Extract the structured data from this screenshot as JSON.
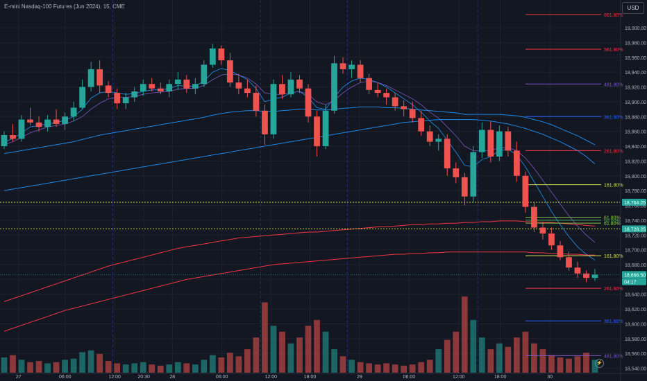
{
  "header": {
    "title": "E-mini Nasdaq-100 Futures (Jun 2024), 15, CME",
    "currency": "USD"
  },
  "colors": {
    "background": "#131722",
    "grid": "#1e222d",
    "up": "#26a69a",
    "down": "#ef5350",
    "ema_short": "#2196f3",
    "ema_mid": "#7e57c2",
    "ma_long_blue": "#1e88e5",
    "ma_long_red": "#f23645"
  },
  "chart_data": {
    "type": "candlestick",
    "title": "E-mini Nasdaq-100 Futures (Jun 2024), 15, CME",
    "yaxis": {
      "range": [
        18534,
        19030
      ],
      "ticks": [
        "19,000.00",
        "18,980.00",
        "18,960.00",
        "18,940.00",
        "18,920.00",
        "18,900.00",
        "18,880.00",
        "18,860.00",
        "18,840.00",
        "18,820.00",
        "18,800.00",
        "18,780.00",
        "18,760.00",
        "18,740.00",
        "18,720.00",
        "18,700.00",
        "18,680.00",
        "18,660.00",
        "18,640.00",
        "18,620.00",
        "18,600.00",
        "18,580.00",
        "18,560.00",
        "18,540.00"
      ]
    },
    "xaxis": {
      "ticks": [
        "27",
        "06:00",
        "12:00",
        "20:30",
        "28",
        "06:00",
        "12:00",
        "18:00",
        "29",
        "06:00",
        "12:00",
        "18:00",
        "30"
      ]
    },
    "price_labels": [
      {
        "text": "18,764.25",
        "value": 18764.25,
        "color": "#26a69a"
      },
      {
        "text": "18,728.25",
        "value": 18728.25,
        "color": "#26a69a"
      },
      {
        "text": "18,666.50",
        "value": 18666.5,
        "color": "#26a69a"
      },
      {
        "text": "04:17",
        "value": 18657,
        "color": "#26a69a"
      }
    ],
    "fibonacci_levels": [
      {
        "label": "661.80%",
        "value": 19018,
        "color": "#f23645"
      },
      {
        "label": "561.80%",
        "value": 18971,
        "color": "#f23645"
      },
      {
        "label": "461.80%",
        "value": 18924,
        "color": "#7e57c2"
      },
      {
        "label": "361.80%",
        "value": 18880,
        "color": "#2962ff"
      },
      {
        "label": "261.80%",
        "value": 18834,
        "color": "#f23645"
      },
      {
        "label": "161.80%",
        "value": 18788,
        "color": "#d4e157"
      },
      {
        "label": "61.80%",
        "value": 18744,
        "color": "#8bc34a"
      },
      {
        "label": "50.00%",
        "value": 18740,
        "color": "#4caf50"
      },
      {
        "label": "61.80%",
        "value": 18736,
        "color": "#8bc34a"
      },
      {
        "label": "161.80%",
        "value": 18692,
        "color": "#d4e157"
      },
      {
        "label": "261.80%",
        "value": 18648,
        "color": "#f23645"
      },
      {
        "label": "361.80%",
        "value": 18604,
        "color": "#2962ff"
      },
      {
        "label": "461.80%",
        "value": 18557,
        "color": "#7e57c2"
      }
    ],
    "dotted_levels": [
      {
        "value": 18764.25,
        "color": "#d4e157"
      },
      {
        "value": 18728.25,
        "color": "#d4e157"
      }
    ],
    "session_breaks": [
      12,
      29,
      39,
      54
    ],
    "candles": [
      {
        "o": 18840,
        "h": 18860,
        "l": 18836,
        "c": 18855
      },
      {
        "o": 18855,
        "h": 18870,
        "l": 18846,
        "c": 18850
      },
      {
        "o": 18850,
        "h": 18882,
        "l": 18846,
        "c": 18876
      },
      {
        "o": 18876,
        "h": 18892,
        "l": 18868,
        "c": 18872
      },
      {
        "o": 18872,
        "h": 18880,
        "l": 18860,
        "c": 18866
      },
      {
        "o": 18866,
        "h": 18882,
        "l": 18860,
        "c": 18876
      },
      {
        "o": 18876,
        "h": 18890,
        "l": 18866,
        "c": 18870
      },
      {
        "o": 18870,
        "h": 18886,
        "l": 18862,
        "c": 18880
      },
      {
        "o": 18880,
        "h": 18900,
        "l": 18874,
        "c": 18892
      },
      {
        "o": 18892,
        "h": 18930,
        "l": 18890,
        "c": 18920
      },
      {
        "o": 18920,
        "h": 18954,
        "l": 18914,
        "c": 18944
      },
      {
        "o": 18944,
        "h": 18956,
        "l": 18912,
        "c": 18922
      },
      {
        "o": 18922,
        "h": 18928,
        "l": 18906,
        "c": 18912
      },
      {
        "o": 18912,
        "h": 18918,
        "l": 18890,
        "c": 18898
      },
      {
        "o": 18898,
        "h": 18912,
        "l": 18890,
        "c": 18906
      },
      {
        "o": 18906,
        "h": 18920,
        "l": 18900,
        "c": 18914
      },
      {
        "o": 18914,
        "h": 18930,
        "l": 18908,
        "c": 18924
      },
      {
        "o": 18924,
        "h": 18932,
        "l": 18914,
        "c": 18918
      },
      {
        "o": 18918,
        "h": 18926,
        "l": 18910,
        "c": 18914
      },
      {
        "o": 18914,
        "h": 18930,
        "l": 18906,
        "c": 18924
      },
      {
        "o": 18924,
        "h": 18940,
        "l": 18916,
        "c": 18930
      },
      {
        "o": 18930,
        "h": 18936,
        "l": 18912,
        "c": 18918
      },
      {
        "o": 18918,
        "h": 18932,
        "l": 18910,
        "c": 18924
      },
      {
        "o": 18924,
        "h": 18956,
        "l": 18920,
        "c": 18950
      },
      {
        "o": 18950,
        "h": 18978,
        "l": 18946,
        "c": 18972
      },
      {
        "o": 18972,
        "h": 18976,
        "l": 18950,
        "c": 18956
      },
      {
        "o": 18956,
        "h": 18966,
        "l": 18920,
        "c": 18926
      },
      {
        "o": 18926,
        "h": 18938,
        "l": 18910,
        "c": 18918
      },
      {
        "o": 18918,
        "h": 18930,
        "l": 18906,
        "c": 18912
      },
      {
        "o": 18912,
        "h": 18922,
        "l": 18880,
        "c": 18888
      },
      {
        "o": 18888,
        "h": 18896,
        "l": 18842,
        "c": 18856
      },
      {
        "o": 18856,
        "h": 18930,
        "l": 18850,
        "c": 18924
      },
      {
        "o": 18924,
        "h": 18936,
        "l": 18904,
        "c": 18910
      },
      {
        "o": 18910,
        "h": 18940,
        "l": 18906,
        "c": 18930
      },
      {
        "o": 18930,
        "h": 18936,
        "l": 18912,
        "c": 18918
      },
      {
        "o": 18918,
        "h": 18924,
        "l": 18872,
        "c": 18880
      },
      {
        "o": 18880,
        "h": 18888,
        "l": 18826,
        "c": 18840
      },
      {
        "o": 18840,
        "h": 18896,
        "l": 18836,
        "c": 18888
      },
      {
        "o": 18888,
        "h": 18962,
        "l": 18884,
        "c": 18952
      },
      {
        "o": 18952,
        "h": 18960,
        "l": 18938,
        "c": 18944
      },
      {
        "o": 18944,
        "h": 18956,
        "l": 18932,
        "c": 18950
      },
      {
        "o": 18950,
        "h": 18956,
        "l": 18926,
        "c": 18932
      },
      {
        "o": 18932,
        "h": 18938,
        "l": 18910,
        "c": 18916
      },
      {
        "o": 18916,
        "h": 18926,
        "l": 18906,
        "c": 18912
      },
      {
        "o": 18912,
        "h": 18918,
        "l": 18896,
        "c": 18906
      },
      {
        "o": 18906,
        "h": 18912,
        "l": 18888,
        "c": 18894
      },
      {
        "o": 18894,
        "h": 18902,
        "l": 18880,
        "c": 18890
      },
      {
        "o": 18890,
        "h": 18900,
        "l": 18872,
        "c": 18878
      },
      {
        "o": 18878,
        "h": 18888,
        "l": 18854,
        "c": 18860
      },
      {
        "o": 18860,
        "h": 18868,
        "l": 18840,
        "c": 18846
      },
      {
        "o": 18846,
        "h": 18856,
        "l": 18834,
        "c": 18850
      },
      {
        "o": 18850,
        "h": 18856,
        "l": 18800,
        "c": 18810
      },
      {
        "o": 18810,
        "h": 18818,
        "l": 18790,
        "c": 18798
      },
      {
        "o": 18798,
        "h": 18804,
        "l": 18760,
        "c": 18772
      },
      {
        "o": 18772,
        "h": 18840,
        "l": 18764,
        "c": 18832
      },
      {
        "o": 18832,
        "h": 18872,
        "l": 18824,
        "c": 18862
      },
      {
        "o": 18862,
        "h": 18874,
        "l": 18818,
        "c": 18826
      },
      {
        "o": 18826,
        "h": 18868,
        "l": 18820,
        "c": 18860
      },
      {
        "o": 18860,
        "h": 18866,
        "l": 18826,
        "c": 18834
      },
      {
        "o": 18834,
        "h": 18846,
        "l": 18792,
        "c": 18800
      },
      {
        "o": 18800,
        "h": 18806,
        "l": 18750,
        "c": 18758
      },
      {
        "o": 18758,
        "h": 18764,
        "l": 18724,
        "c": 18730
      },
      {
        "o": 18730,
        "h": 18738,
        "l": 18714,
        "c": 18722
      },
      {
        "o": 18722,
        "h": 18730,
        "l": 18700,
        "c": 18706
      },
      {
        "o": 18706,
        "h": 18712,
        "l": 18686,
        "c": 18690
      },
      {
        "o": 18690,
        "h": 18698,
        "l": 18672,
        "c": 18676
      },
      {
        "o": 18676,
        "h": 18684,
        "l": 18662,
        "c": 18668
      },
      {
        "o": 18668,
        "h": 18672,
        "l": 18656,
        "c": 18662
      },
      {
        "o": 18662,
        "h": 18674,
        "l": 18658,
        "c": 18666.5
      }
    ],
    "volume": [
      26,
      30,
      22,
      18,
      20,
      16,
      18,
      22,
      24,
      35,
      38,
      32,
      20,
      16,
      14,
      16,
      18,
      14,
      12,
      14,
      18,
      16,
      14,
      22,
      30,
      26,
      34,
      28,
      40,
      60,
      120,
      80,
      70,
      50,
      60,
      80,
      90,
      70,
      40,
      28,
      22,
      18,
      16,
      14,
      16,
      14,
      12,
      14,
      18,
      22,
      40,
      56,
      70,
      130,
      90,
      60,
      40,
      50,
      44,
      60,
      70,
      50,
      40,
      30,
      26,
      24,
      28,
      34,
      22
    ],
    "ma_series": [
      {
        "color": "#2196f3",
        "width": 0.8,
        "values": [
          18846,
          18850,
          18858,
          18866,
          18868,
          18870,
          18872,
          18875,
          18880,
          18890,
          18905,
          18912,
          18914,
          18912,
          18910,
          18911,
          18914,
          18916,
          18916,
          18918,
          18922,
          18921,
          18921,
          18928,
          18940,
          18945,
          18942,
          18936,
          18930,
          18918,
          18900,
          18904,
          18906,
          18912,
          18914,
          18906,
          18892,
          18890,
          18906,
          18920,
          18928,
          18932,
          18930,
          18926,
          18920,
          18912,
          18904,
          18896,
          18886,
          18874,
          18864,
          18848,
          18832,
          18814,
          18812,
          18822,
          18826,
          18834,
          18836,
          18828,
          18812,
          18792,
          18772,
          18752,
          18734,
          18718,
          18704,
          18694,
          18686
        ]
      },
      {
        "color": "#7e57c2",
        "width": 0.8,
        "values": [
          18842,
          18846,
          18852,
          18858,
          18862,
          18866,
          18868,
          18870,
          18874,
          18880,
          18890,
          18898,
          18904,
          18906,
          18906,
          18907,
          18910,
          18912,
          18913,
          18914,
          18917,
          18918,
          18918,
          18922,
          18930,
          18936,
          18938,
          18936,
          18932,
          18924,
          18912,
          18910,
          18910,
          18912,
          18914,
          18910,
          18900,
          18896,
          18902,
          18912,
          18920,
          18926,
          18928,
          18926,
          18922,
          18916,
          18910,
          18904,
          18896,
          18886,
          18878,
          18866,
          18854,
          18840,
          18834,
          18834,
          18834,
          18838,
          18838,
          18834,
          18824,
          18810,
          18794,
          18778,
          18762,
          18746,
          18732,
          18720,
          18710
        ]
      },
      {
        "color": "#1e88e5",
        "width": 1.0,
        "values": [
          18830,
          18832,
          18834,
          18836,
          18838,
          18840,
          18842,
          18844,
          18846,
          18849,
          18852,
          18855,
          18857,
          18859,
          18861,
          18863,
          18865,
          18867,
          18869,
          18871,
          18873,
          18875,
          18877,
          18879,
          18882,
          18884,
          18886,
          18887,
          18888,
          18888,
          18887,
          18887,
          18888,
          18889,
          18890,
          18890,
          18889,
          18889,
          18890,
          18891,
          18892,
          18893,
          18893,
          18893,
          18892,
          18892,
          18891,
          18890,
          18889,
          18888,
          18887,
          18886,
          18885,
          18883,
          18883,
          18883,
          18883,
          18883,
          18882,
          18881,
          18879,
          18876,
          18873,
          18869,
          18864,
          18859,
          18854,
          18848,
          18842
        ]
      },
      {
        "color": "#1e88e5",
        "width": 1.0,
        "values": [
          18780,
          18782,
          18784,
          18786,
          18788,
          18790,
          18792,
          18794,
          18796,
          18798,
          18800,
          18802,
          18804,
          18806,
          18808,
          18810,
          18812,
          18814,
          18816,
          18818,
          18820,
          18822,
          18824,
          18826,
          18828,
          18830,
          18832,
          18834,
          18836,
          18838,
          18840,
          18842,
          18844,
          18846,
          18848,
          18850,
          18852,
          18854,
          18856,
          18858,
          18860,
          18862,
          18864,
          18866,
          18868,
          18870,
          18872,
          18873,
          18874,
          18875,
          18876,
          18876,
          18876,
          18876,
          18876,
          18875,
          18874,
          18872,
          18870,
          18867,
          18864,
          18860,
          18856,
          18851,
          18846,
          18840,
          18834,
          18826,
          18816
        ]
      },
      {
        "color": "#f23645",
        "width": 1.0,
        "values": [
          18630,
          18634,
          18638,
          18642,
          18646,
          18650,
          18654,
          18658,
          18662,
          18666,
          18670,
          18674,
          18678,
          18681,
          18684,
          18687,
          18690,
          18693,
          18696,
          18699,
          18702,
          18704,
          18706,
          18708,
          18710,
          18712,
          18714,
          18716,
          18717,
          18718,
          18719,
          18720,
          18721,
          18722,
          18723,
          18724,
          18724,
          18725,
          18726,
          18727,
          18728,
          18729,
          18730,
          18731,
          18731,
          18732,
          18733,
          18734,
          18734,
          18735,
          18735,
          18736,
          18736,
          18737,
          18737,
          18738,
          18738,
          18739,
          18739,
          18739,
          18738,
          18738,
          18737,
          18737,
          18736,
          18735,
          18734,
          18733,
          18732
        ]
      },
      {
        "color": "#f23645",
        "width": 1.0,
        "values": [
          18590,
          18594,
          18598,
          18602,
          18606,
          18610,
          18614,
          18618,
          18621,
          18624,
          18627,
          18630,
          18633,
          18636,
          18639,
          18642,
          18645,
          18648,
          18651,
          18654,
          18657,
          18660,
          18662,
          18664,
          18666,
          18668,
          18670,
          18672,
          18674,
          18676,
          18678,
          18680,
          18681,
          18682,
          18683,
          18684,
          18685,
          18686,
          18687,
          18688,
          18689,
          18690,
          18691,
          18692,
          18693,
          18694,
          18694,
          18695,
          18695,
          18696,
          18696,
          18697,
          18697,
          18697,
          18697,
          18697,
          18697,
          18697,
          18697,
          18697,
          18697,
          18696,
          18696,
          18695,
          18695,
          18694,
          18694,
          18693,
          18693
        ]
      }
    ]
  }
}
